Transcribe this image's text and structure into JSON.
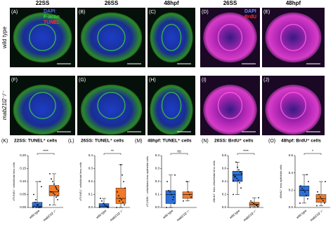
{
  "columns": [
    "22SS",
    "26SS",
    "48hpf",
    "26SS",
    "48hpf"
  ],
  "rows": [
    "wild type",
    "mab21l2⁻/⁻"
  ],
  "legend_left": [
    "DAPI",
    "F-actin",
    "TUNEL"
  ],
  "legend_right": [
    "DAPI",
    "BrdU"
  ],
  "panels": [
    "(A)",
    "(B)",
    "(C)",
    "(D)",
    "(E)",
    "(F)",
    "(G)",
    "(H)",
    "(I)",
    "(J)"
  ],
  "chart_data": [
    {
      "type": "box",
      "panel": "(K)",
      "title": "22SS: TUNEL⁺ cells",
      "ylabel": "#TUNEL⁺ cells/#total lens cells",
      "significance": "****",
      "categories": [
        "wild type",
        "mab21l2⁻/⁻"
      ],
      "ylim": [
        0,
        0.2
      ],
      "yticks": [
        {
          "value": 0,
          "label": "0.00"
        },
        {
          "value": 0.05,
          "label": "0.05"
        },
        {
          "value": 0.1,
          "label": "0.10"
        },
        {
          "value": 0.15,
          "label": "0.15"
        },
        {
          "value": 0.2,
          "label": "0.20"
        }
      ],
      "boxes": [
        {
          "color": "#2d6fd6",
          "min": 0,
          "q1": 0,
          "median": 0.005,
          "q3": 0.02,
          "max": 0.1,
          "points": [
            0,
            0,
            0,
            0.01,
            0,
            0.02,
            0.05,
            0.08,
            0.1,
            0,
            0.01,
            0.03
          ]
        },
        {
          "color": "#f07a2a",
          "min": 0.01,
          "q1": 0.045,
          "median": 0.06,
          "q3": 0.085,
          "max": 0.13,
          "points": [
            0.01,
            0.03,
            0.04,
            0.05,
            0.055,
            0.06,
            0.06,
            0.065,
            0.07,
            0.08,
            0.09,
            0.1,
            0.11,
            0.13,
            0.045,
            0.075
          ]
        }
      ]
    },
    {
      "type": "box",
      "panel": "(L)",
      "title": "26SS: TUNEL⁺ cells",
      "ylabel": "#TUNEL⁺ cells/#total lens cells",
      "significance": "**",
      "categories": [
        "wild type",
        "mab21l2⁻/⁻"
      ],
      "ylim": [
        0,
        0.4
      ],
      "yticks": [
        {
          "value": 0,
          "label": "0.0"
        },
        {
          "value": 0.1,
          "label": "0.1"
        },
        {
          "value": 0.2,
          "label": "0.2"
        },
        {
          "value": 0.3,
          "label": "0.3"
        },
        {
          "value": 0.4,
          "label": "0.4"
        }
      ],
      "boxes": [
        {
          "color": "#2d6fd6",
          "min": 0,
          "q1": 0,
          "median": 0.01,
          "q3": 0.03,
          "max": 0.07,
          "points": [
            0,
            0,
            0.01,
            0.02,
            0.03,
            0.05,
            0.07,
            0,
            0.01
          ]
        },
        {
          "color": "#f07a2a",
          "min": 0,
          "q1": 0.03,
          "median": 0.07,
          "q3": 0.15,
          "max": 0.33,
          "points": [
            0,
            0.02,
            0.04,
            0.06,
            0.07,
            0.09,
            0.12,
            0.15,
            0.2,
            0.25,
            0.33,
            0.05
          ]
        }
      ]
    },
    {
      "type": "box",
      "panel": "(M)",
      "title": "48hpf: TUNEL⁺ cells",
      "ylabel": "#TUNEL⁺ cells/#total lens epithelial cells",
      "significance": "ns",
      "categories": [
        "wild type",
        "mab21l2⁻/⁻"
      ],
      "ylim": [
        0,
        0.4
      ],
      "yticks": [
        {
          "value": 0,
          "label": "0.0"
        },
        {
          "value": 0.1,
          "label": "0.1"
        },
        {
          "value": 0.2,
          "label": "0.2"
        },
        {
          "value": 0.3,
          "label": "0.3"
        },
        {
          "value": 0.4,
          "label": "0.4"
        }
      ],
      "boxes": [
        {
          "color": "#2d6fd6",
          "min": 0,
          "q1": 0.03,
          "median": 0.1,
          "q3": 0.13,
          "max": 0.25,
          "points": [
            0,
            0.03,
            0.06,
            0.1,
            0.12,
            0.13,
            0.2,
            0.25,
            0.08
          ]
        },
        {
          "color": "#f07a2a",
          "min": 0.05,
          "q1": 0.07,
          "median": 0.1,
          "q3": 0.12,
          "max": 0.2,
          "points": [
            0.05,
            0.08,
            0.1,
            0.12,
            0.2
          ]
        }
      ]
    },
    {
      "type": "box",
      "panel": "(N)",
      "title": "26SS: BrdU⁺ cells",
      "ylabel": "#BrdU⁺ lens cells/#total lens cells",
      "significance": "****",
      "categories": [
        "wild type",
        "mab21l2⁻/⁻"
      ],
      "ylim": [
        0,
        0.8
      ],
      "yticks": [
        {
          "value": 0,
          "label": "0.0"
        },
        {
          "value": 0.2,
          "label": "0.2"
        },
        {
          "value": 0.4,
          "label": "0.4"
        },
        {
          "value": 0.6,
          "label": "0.6"
        },
        {
          "value": 0.8,
          "label": "0.8"
        }
      ],
      "boxes": [
        {
          "color": "#2d6fd6",
          "min": 0.2,
          "q1": 0.4,
          "median": 0.5,
          "q3": 0.56,
          "max": 0.7,
          "points": [
            0.2,
            0.3,
            0.38,
            0.42,
            0.45,
            0.48,
            0.5,
            0.52,
            0.55,
            0.58,
            0.62,
            0.7,
            0.47,
            0.41
          ]
        },
        {
          "color": "#f07a2a",
          "min": 0,
          "q1": 0.02,
          "median": 0.05,
          "q3": 0.08,
          "max": 0.15,
          "points": [
            0,
            0.01,
            0.03,
            0.05,
            0.06,
            0.08,
            0.1,
            0.15,
            0.04
          ]
        }
      ]
    },
    {
      "type": "box",
      "panel": "(O)",
      "title": "48hpf: BrdU⁺ cells",
      "ylabel": "#BrdU⁺ lens epithelial cells",
      "significance": "*",
      "categories": [
        "wild type",
        "mab21l2⁻/⁻"
      ],
      "ylim": [
        0,
        0.6
      ],
      "yticks": [
        {
          "value": 0,
          "label": "0.0"
        },
        {
          "value": 0.2,
          "label": "0.2"
        },
        {
          "value": 0.4,
          "label": "0.4"
        },
        {
          "value": 0.6,
          "label": "0.6"
        }
      ],
      "boxes": [
        {
          "color": "#2d6fd6",
          "min": 0.05,
          "q1": 0.13,
          "median": 0.2,
          "q3": 0.25,
          "max": 0.38,
          "points": [
            0.05,
            0.1,
            0.14,
            0.18,
            0.2,
            0.22,
            0.25,
            0.3,
            0.38
          ]
        },
        {
          "color": "#f07a2a",
          "min": 0.02,
          "q1": 0.06,
          "median": 0.1,
          "q3": 0.15,
          "max": 0.3,
          "points": [
            0.02,
            0.05,
            0.08,
            0.1,
            0.12,
            0.15,
            0.18,
            0.3
          ]
        }
      ]
    }
  ]
}
